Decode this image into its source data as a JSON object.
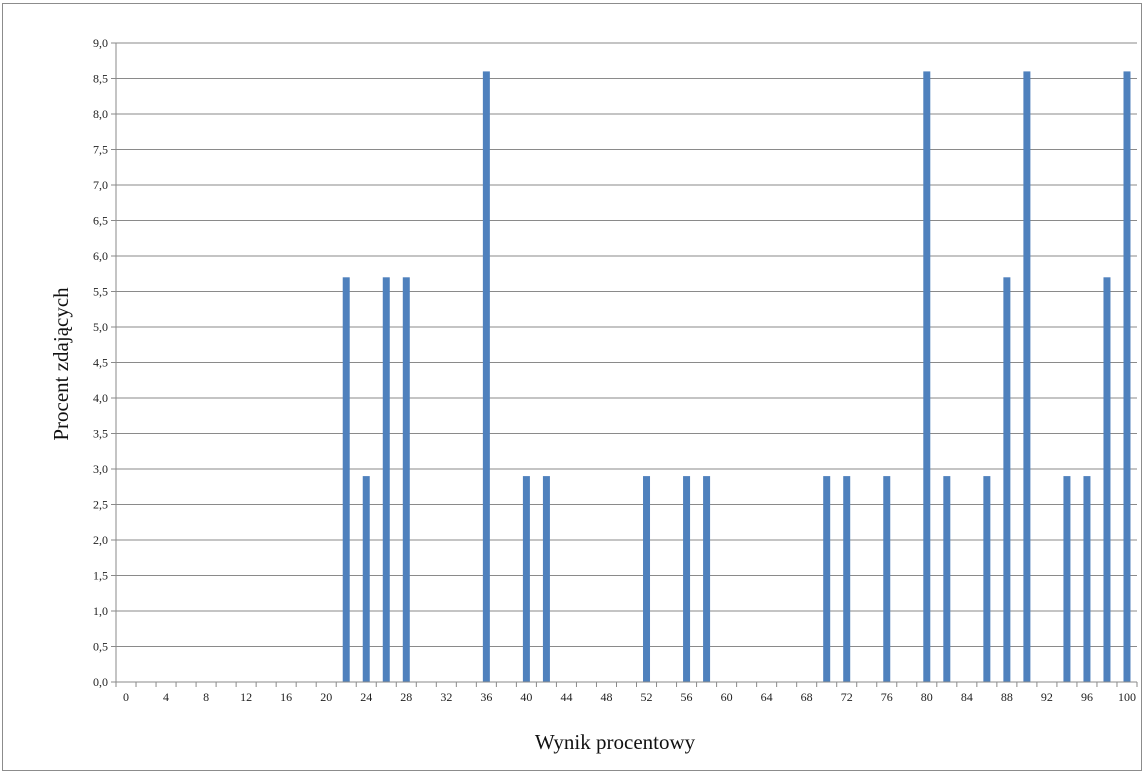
{
  "chart_data": {
    "type": "bar",
    "xlabel": "Wynik procentowy",
    "ylabel": "Procent zdających",
    "ylim": [
      0,
      9
    ],
    "y_tick_step": 0.5,
    "grid": true,
    "bar_color": "#4f81bd",
    "x": [
      0,
      2,
      4,
      6,
      8,
      10,
      12,
      14,
      16,
      18,
      20,
      22,
      24,
      26,
      28,
      30,
      32,
      34,
      36,
      38,
      40,
      42,
      44,
      46,
      48,
      50,
      52,
      54,
      56,
      58,
      60,
      62,
      64,
      66,
      68,
      70,
      72,
      74,
      76,
      78,
      80,
      82,
      84,
      86,
      88,
      90,
      92,
      94,
      96,
      98,
      100
    ],
    "x_tick_labels": [
      0,
      4,
      8,
      12,
      16,
      20,
      24,
      28,
      32,
      36,
      40,
      44,
      48,
      52,
      56,
      60,
      64,
      68,
      72,
      76,
      80,
      84,
      88,
      92,
      96,
      100
    ],
    "values": [
      0,
      0,
      0,
      0,
      0,
      0,
      0,
      0,
      0,
      0,
      0,
      5.7,
      2.9,
      5.7,
      5.7,
      0,
      0,
      0,
      8.6,
      0,
      2.9,
      2.9,
      0,
      0,
      0,
      0,
      2.9,
      0,
      2.9,
      2.9,
      0,
      0,
      0,
      0,
      0,
      2.9,
      2.9,
      0,
      2.9,
      0,
      8.6,
      2.9,
      0,
      2.9,
      5.7,
      8.6,
      0,
      2.9,
      2.9,
      5.7,
      8.6
    ]
  }
}
